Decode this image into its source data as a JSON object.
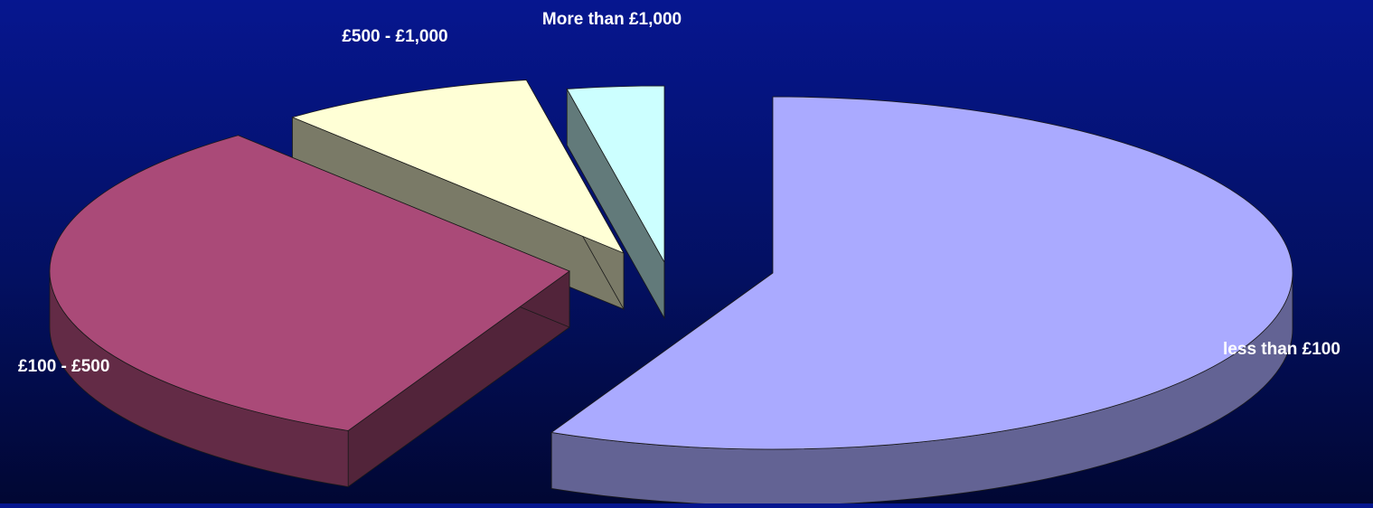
{
  "chart_data": {
    "type": "pie",
    "style": "3d-exploded",
    "categories": [
      "less than £100",
      "£100 - £500",
      "£500 - £1,000",
      "More than £1,000"
    ],
    "values": [
      57,
      32,
      8,
      3
    ],
    "colors": [
      "#aaaaff",
      "#aa4a78",
      "#ffffd6",
      "#ccffff"
    ],
    "title": "",
    "legend": "none",
    "start_angle_deg": 90
  }
}
